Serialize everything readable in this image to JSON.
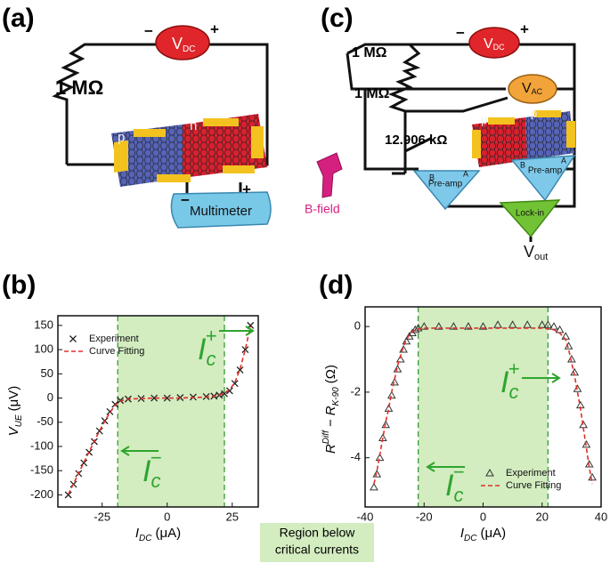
{
  "panel_labels": [
    "(a)",
    "(b)",
    "(c)",
    "(d)"
  ],
  "diagram_a": {
    "resistor": "1 MΩ",
    "source": {
      "main": "V",
      "sub": "DC"
    },
    "minus": "−",
    "plus": "+",
    "p": "p",
    "n": "n",
    "meter": "Multimeter",
    "meter_minus": "−",
    "meter_plus": "+"
  },
  "b_field": "B-field",
  "diagram_c": {
    "resistor_1": "1 MΩ",
    "resistor_2": "1 MΩ",
    "resistor_3": "12.906 kΩ",
    "source_dc": {
      "main": "V",
      "sub": "DC"
    },
    "minus": "−",
    "plus": "+",
    "source_ac": {
      "main": "V",
      "sub": "AC"
    },
    "p": "p",
    "n": "p",
    "preamp_left": {
      "label": "Pre-amp",
      "a": "A",
      "b": "B"
    },
    "preamp_right": {
      "label": "Pre-amp",
      "a": "A",
      "b": "B"
    },
    "lockin": "Lock-in",
    "output": {
      "main": "V",
      "sub": "out"
    }
  },
  "region_label": [
    "Region below",
    "critical currents"
  ],
  "chart_data": [
    {
      "type": "scatter",
      "xlabel": {
        "main": "I",
        "sub": "DC",
        "unit": "(μA)"
      },
      "ylabel": {
        "main": "V",
        "sub": "UE",
        "unit": "(μV)"
      },
      "xlim": [
        -42,
        35
      ],
      "ylim": [
        -225,
        170
      ],
      "xticks": [
        -25,
        0,
        25
      ],
      "yticks": [
        150,
        100,
        50,
        0,
        -50,
        -100,
        -150,
        -200
      ],
      "critical_region": [
        -19,
        22
      ],
      "legend": "upper left",
      "annotations": [
        {
          "main": "I",
          "sub": "c",
          "sup": "+"
        },
        {
          "main": "I",
          "sub": "c",
          "sup": "−"
        }
      ],
      "x": [
        -38,
        -36,
        -34,
        -32,
        -30,
        -28,
        -26,
        -24,
        -22,
        -20,
        -18,
        -15,
        -10,
        -5,
        0,
        5,
        10,
        15,
        18,
        20,
        22,
        24,
        26,
        28,
        30,
        32
      ],
      "series": [
        {
          "name": "Experiment",
          "color": "#222222",
          "marker": "x",
          "values": [
            -200,
            -178,
            -156,
            -134,
            -112,
            -90,
            -68,
            -47,
            -28,
            -13,
            -5,
            -2,
            -1,
            0,
            0,
            1,
            2,
            3,
            4,
            6,
            9,
            15,
            30,
            58,
            100,
            150
          ]
        },
        {
          "name": "Curve Fitting",
          "color": "#e0302a",
          "style": "dashed",
          "values": [
            -199,
            -177,
            -155,
            -133,
            -111,
            -89,
            -68,
            -48,
            -30,
            -15,
            -6,
            -2,
            -1,
            0,
            0,
            0,
            1,
            2,
            4,
            6,
            10,
            17,
            32,
            60,
            100,
            148
          ]
        }
      ]
    },
    {
      "type": "scatter",
      "xlabel": {
        "main": "I",
        "sub": "DC",
        "unit": "(μA)"
      },
      "ylabel": {
        "main": "R",
        "sup": "Diff",
        "mid": "− R",
        "sub": "K-90",
        "unit": "(Ω)"
      },
      "xlim": [
        -40,
        40
      ],
      "ylim": [
        -5.5,
        0.6
      ],
      "xticks": [
        -40,
        -20,
        0,
        20,
        40
      ],
      "yticks": [
        0,
        -2,
        -4
      ],
      "critical_region": [
        -22,
        22
      ],
      "legend": "lower right",
      "annotations": [
        {
          "main": "I",
          "sub": "c",
          "sup": "+"
        },
        {
          "main": "I",
          "sub": "c",
          "sup": "−"
        }
      ],
      "x": [
        -37,
        -36,
        -35,
        -34,
        -33,
        -32,
        -31,
        -30,
        -29,
        -28,
        -27,
        -26,
        -25,
        -24,
        -23,
        -22,
        -20,
        -15,
        -10,
        -5,
        0,
        5,
        10,
        15,
        20,
        22,
        24,
        26,
        28,
        29,
        30,
        31,
        32,
        33,
        34,
        35,
        36,
        37
      ],
      "series": [
        {
          "name": "Experiment",
          "color": "#333333",
          "marker": "triangle",
          "values": [
            -4.9,
            -4.5,
            -4.0,
            -3.4,
            -3.0,
            -2.5,
            -2.1,
            -1.7,
            -1.3,
            -1.0,
            -0.7,
            -0.45,
            -0.3,
            -0.2,
            -0.1,
            -0.05,
            0,
            0,
            0,
            0,
            0,
            0.05,
            0.05,
            0.05,
            0.05,
            0.05,
            0,
            -0.1,
            -0.3,
            -0.6,
            -1.0,
            -1.4,
            -1.9,
            -2.4,
            -3.0,
            -3.6,
            -4.2,
            -4.6
          ]
        },
        {
          "name": "Curve Fitting",
          "color": "#e0302a",
          "style": "dashed",
          "values": [
            -4.8,
            -4.4,
            -3.9,
            -3.4,
            -2.9,
            -2.5,
            -2.0,
            -1.6,
            -1.2,
            -0.9,
            -0.6,
            -0.4,
            -0.25,
            -0.15,
            -0.1,
            -0.08,
            -0.05,
            -0.05,
            -0.05,
            -0.05,
            -0.05,
            -0.05,
            -0.05,
            -0.05,
            -0.05,
            -0.07,
            -0.1,
            -0.2,
            -0.4,
            -0.7,
            -1.1,
            -1.5,
            -2.0,
            -2.5,
            -3.1,
            -3.7,
            -4.3,
            -4.8
          ]
        }
      ]
    }
  ]
}
